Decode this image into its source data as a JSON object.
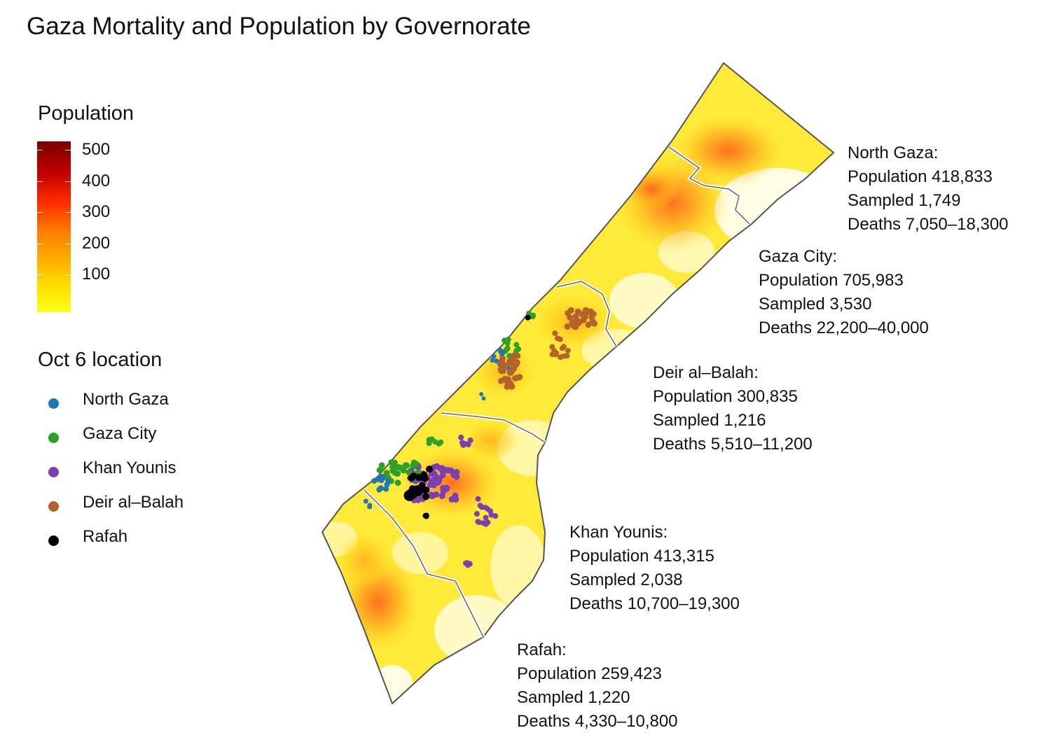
{
  "title": "Gaza Mortality and Population by Governorate",
  "population_legend": {
    "title": "Population",
    "ticks": [
      "500",
      "400",
      "300",
      "200",
      "100"
    ],
    "colors": [
      "#7a0000",
      "#c00000",
      "#ff2a00",
      "#ff7a00",
      "#ffb000",
      "#ffe000",
      "#ffff1a"
    ]
  },
  "location_legend": {
    "title": "Oct 6 location",
    "items": [
      {
        "label": "North Gaza",
        "color": "#1f77b4"
      },
      {
        "label": "Gaza City",
        "color": "#2ca02c"
      },
      {
        "label": "Khan Younis",
        "color": "#7a3fb0"
      },
      {
        "label": "Deir al–Balah",
        "color": "#b5612a"
      },
      {
        "label": "Rafah",
        "color": "#000000"
      }
    ]
  },
  "governorates": [
    {
      "name": "North Gaza:",
      "population": "Population 418,833",
      "sampled": "Sampled 1,749",
      "deaths": "Deaths 7,050–18,300"
    },
    {
      "name": "Gaza City:",
      "population": "Population 705,983",
      "sampled": "Sampled 3,530",
      "deaths": "Deaths 22,200–40,000"
    },
    {
      "name": "Deir al–Balah:",
      "population": "Population 300,835",
      "sampled": "Sampled 1,216",
      "deaths": "Deaths 5,510–11,200"
    },
    {
      "name": "Khan Younis:",
      "population": "Population 413,315",
      "sampled": "Sampled 2,038",
      "deaths": "Deaths 10,700–19,300"
    },
    {
      "name": "Rafah:",
      "population": "Population 259,423",
      "sampled": "Sampled 1,220",
      "deaths": "Deaths 4,330–10,800"
    }
  ]
}
